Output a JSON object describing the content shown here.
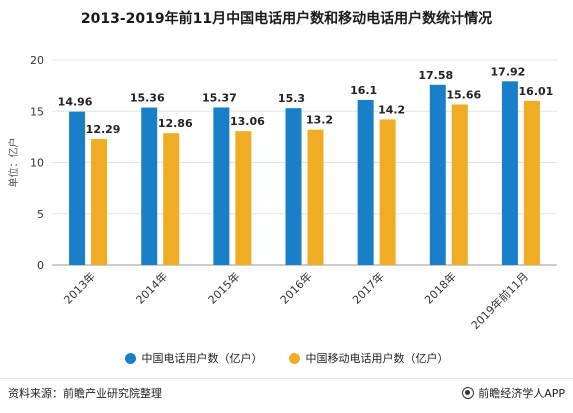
{
  "header": {
    "title": "2013-2019年前11月中国电话用户数和移动电话用户数统计情况"
  },
  "footer": {
    "source": "资料来源：前瞻产业研究院整理",
    "brand": "前瞻经济学人APP"
  },
  "colors": {
    "series1": "#1a7fc9",
    "series2": "#f0ac22",
    "grid": "#e3e3e3",
    "axis": "#999999"
  },
  "chart_data": {
    "type": "bar",
    "title": "2013-2019年前11月中国电话用户数和移动电话用户数统计情况",
    "ylabel": "单位：亿户",
    "xlabel": "",
    "ylim": [
      0,
      20
    ],
    "yticks": [
      0,
      5,
      10,
      15,
      20
    ],
    "grid": true,
    "legend_position": "bottom",
    "categories": [
      "2013年",
      "2014年",
      "2015年",
      "2016年",
      "2017年",
      "2018年",
      "2019年前11月"
    ],
    "series": [
      {
        "name": "中国电话用户数（亿户）",
        "values": [
          14.96,
          15.36,
          15.37,
          15.3,
          16.1,
          17.58,
          17.92
        ]
      },
      {
        "name": "中国移动电话用户数（亿户）",
        "values": [
          12.29,
          12.86,
          13.06,
          13.2,
          14.2,
          15.66,
          16.01
        ]
      }
    ]
  }
}
